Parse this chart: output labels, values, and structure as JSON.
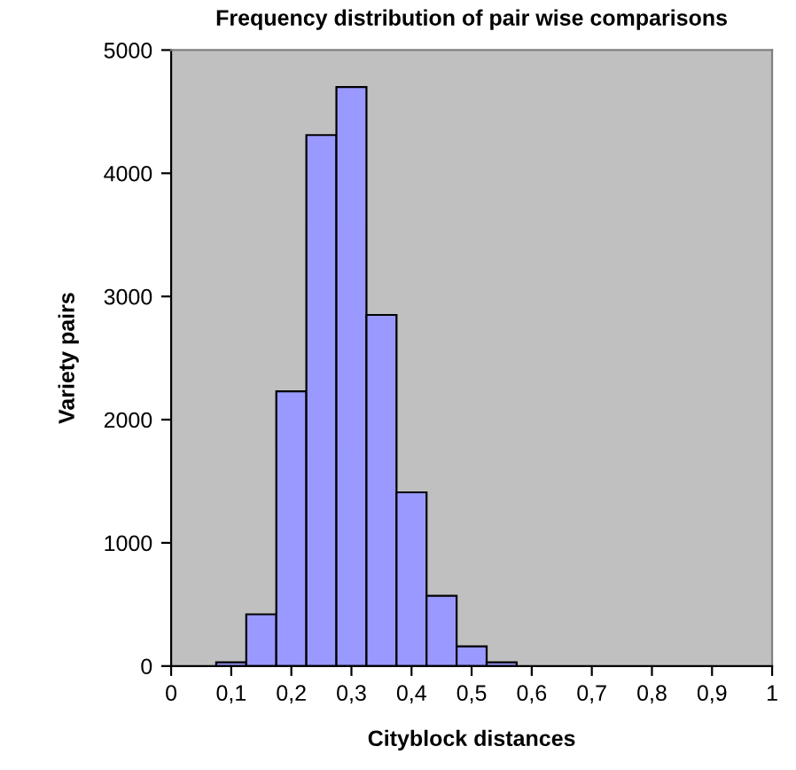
{
  "chart_data": {
    "type": "histogram",
    "title": "Frequency distribution of pair wise comparisons",
    "xlabel": "Cityblock distances",
    "ylabel": "Variety pairs",
    "bins": [
      0.075,
      0.125,
      0.175,
      0.225,
      0.275,
      0.325,
      0.375,
      0.425,
      0.475,
      0.525,
      0.575
    ],
    "values": [
      30,
      420,
      2230,
      4310,
      4700,
      2850,
      1410,
      570,
      160,
      30
    ],
    "color": "#9999ff",
    "xlim": [
      0,
      1
    ],
    "xticks": [
      0,
      {
        "value": 0.1,
        "label": "0,1"
      },
      {
        "value": 0.2,
        "label": "0,2"
      },
      {
        "value": 0.3,
        "label": "0,3"
      },
      {
        "value": 0.4,
        "label": "0,4"
      },
      {
        "value": 0.5,
        "label": "0,5"
      },
      {
        "value": 0.6,
        "label": "0,6"
      },
      {
        "value": 0.7,
        "label": "0,7"
      },
      {
        "value": 0.8,
        "label": "0,8"
      },
      {
        "value": 0.9,
        "label": "0,9"
      },
      1
    ],
    "ylim": [
      0,
      5000
    ],
    "yticks": [
      0,
      1000,
      2000,
      3000,
      4000,
      5000
    ],
    "grid": false
  }
}
